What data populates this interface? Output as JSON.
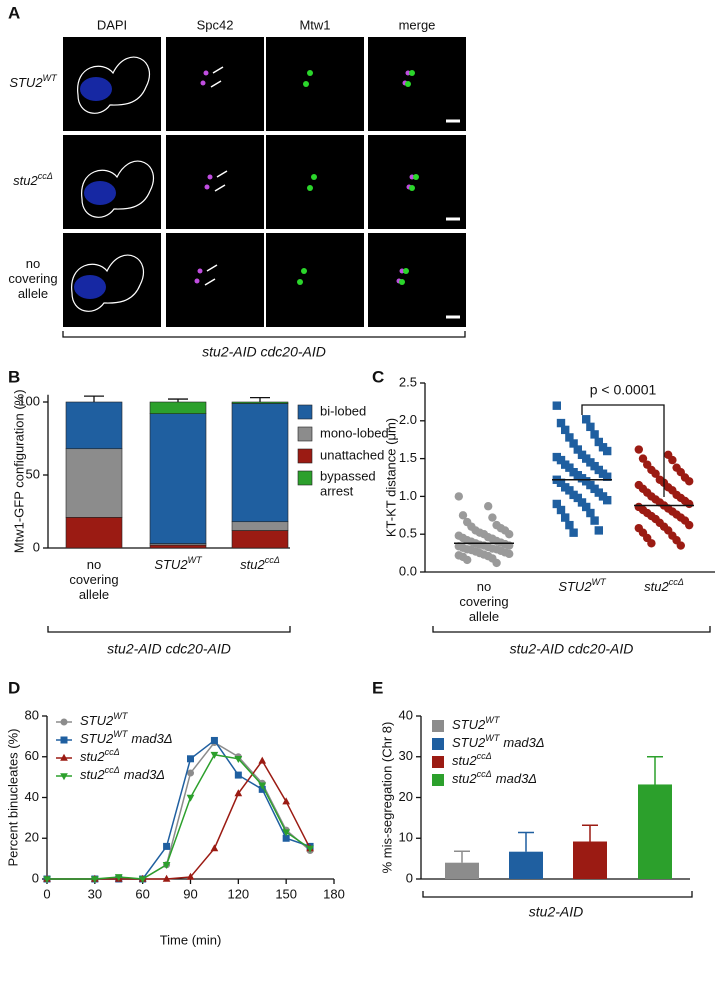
{
  "panel_labels": [
    "A",
    "B",
    "C",
    "D",
    "E"
  ],
  "panel_a": {
    "columns": [
      "DAPI",
      "Spc42",
      "Mtw1",
      "merge"
    ],
    "rows": [
      {
        "base": "STU2",
        "sup": "WT"
      },
      {
        "base": "stu2",
        "sup": "ccΔ"
      },
      "no covering allele"
    ],
    "caption": "stu2-AID cdc20-AID"
  },
  "chart_data": [
    {
      "type": "stacked-bar",
      "y_label": "Mtw1-GFP configuration (%)",
      "caption": "stu2-AID cdc20-AID",
      "categories": [
        "no covering allele",
        {
          "base": "STU2",
          "sup": "WT"
        },
        {
          "base": "stu2",
          "sup": "ccΔ"
        }
      ],
      "series": [
        {
          "name": "unattached",
          "color": "#9b1b13",
          "values": [
            21,
            2,
            12
          ],
          "errors": [
            4,
            0.5,
            2
          ]
        },
        {
          "name": "mono-lobed",
          "color": "#8c8c8c",
          "values": [
            47,
            1,
            6
          ],
          "errors": [
            8,
            null,
            3
          ]
        },
        {
          "name": "bi-lobed",
          "color": "#1f5fa0",
          "values": [
            32,
            89,
            81
          ],
          "errors": [
            4,
            1,
            4
          ]
        },
        {
          "name": "bypassed arrest",
          "color": "#2ca02c",
          "values": [
            0,
            8,
            1
          ],
          "errors": [
            null,
            2,
            null
          ]
        }
      ],
      "ylim": [
        0,
        105
      ],
      "yticks": [
        0,
        50,
        100
      ],
      "legend": "right"
    },
    {
      "type": "strip",
      "y_label": "KT-KT distance (μm)",
      "caption": "stu2-AID cdc20-AID",
      "annotation": "p < 0.0001",
      "categories": [
        "no covering allele",
        {
          "base": "STU2",
          "sup": "WT"
        },
        {
          "base": "stu2",
          "sup": "ccΔ"
        }
      ],
      "series": [
        {
          "color": "#9a9a9a",
          "marker": "circle",
          "mean": 0.38,
          "values": [
            1.0,
            0.87,
            0.75,
            0.72,
            0.66,
            0.62,
            0.6,
            0.58,
            0.55,
            0.55,
            0.52,
            0.5,
            0.5,
            0.48,
            0.46,
            0.45,
            0.44,
            0.42,
            0.41,
            0.4,
            0.39,
            0.38,
            0.37,
            0.36,
            0.35,
            0.35,
            0.34,
            0.33,
            0.32,
            0.31,
            0.3,
            0.3,
            0.29,
            0.28,
            0.27,
            0.26,
            0.25,
            0.24,
            0.23,
            0.22,
            0.21,
            0.2,
            0.18,
            0.16,
            0.12
          ]
        },
        {
          "color": "#1f5fa0",
          "marker": "square",
          "mean": 1.22,
          "values": [
            2.2,
            2.02,
            1.97,
            1.92,
            1.88,
            1.82,
            1.78,
            1.72,
            1.7,
            1.65,
            1.62,
            1.6,
            1.55,
            1.52,
            1.5,
            1.48,
            1.45,
            1.42,
            1.4,
            1.38,
            1.35,
            1.32,
            1.3,
            1.28,
            1.26,
            1.24,
            1.22,
            1.2,
            1.18,
            1.15,
            1.12,
            1.1,
            1.08,
            1.05,
            1.02,
            1.0,
            0.98,
            0.95,
            0.92,
            0.9,
            0.86,
            0.82,
            0.78,
            0.72,
            0.68,
            0.62,
            0.55,
            0.52
          ]
        },
        {
          "color": "#9b1b13",
          "marker": "circle",
          "mean": 0.88,
          "values": [
            1.62,
            1.55,
            1.5,
            1.48,
            1.42,
            1.38,
            1.35,
            1.32,
            1.3,
            1.25,
            1.22,
            1.2,
            1.18,
            1.15,
            1.12,
            1.1,
            1.08,
            1.05,
            1.02,
            1.0,
            0.98,
            0.96,
            0.94,
            0.92,
            0.9,
            0.88,
            0.86,
            0.84,
            0.82,
            0.8,
            0.78,
            0.76,
            0.74,
            0.72,
            0.7,
            0.68,
            0.65,
            0.62,
            0.6,
            0.58,
            0.55,
            0.52,
            0.48,
            0.45,
            0.42,
            0.38,
            0.35
          ]
        }
      ],
      "ylim": [
        0,
        2.5
      ],
      "yticks": [
        {
          "value": 0,
          "label": "0.0"
        },
        0.5,
        {
          "value": 1,
          "label": "1.0"
        },
        1.5,
        {
          "value": 2,
          "label": "2.0"
        },
        2.5
      ]
    },
    {
      "type": "line",
      "x_label": "Time (min)",
      "y_label": "Percent binucleates (%)",
      "x": [
        0,
        30,
        45,
        60,
        75,
        90,
        105,
        120,
        135,
        150,
        165
      ],
      "series": [
        {
          "name": {
            "base": "STU2",
            "sup": "WT"
          },
          "color": "#8c8c8c",
          "marker": "circle",
          "values": [
            0,
            0,
            0,
            0,
            7,
            52,
            67,
            60,
            47,
            24,
            14
          ]
        },
        {
          "name": {
            "base": "STU2",
            "sup": "WT",
            "after": "mad3Δ"
          },
          "color": "#1f5fa0",
          "marker": "square",
          "values": [
            0,
            0,
            0,
            0,
            16,
            59,
            68,
            51,
            44,
            20,
            16
          ]
        },
        {
          "name": {
            "base": "stu2",
            "sup": "ccΔ"
          },
          "color": "#9b1b13",
          "marker": "triangle",
          "values": [
            0,
            0,
            0,
            0,
            0,
            1,
            15,
            42,
            58,
            38,
            15
          ]
        },
        {
          "name": {
            "base": "stu2",
            "sup": "ccΔ",
            "after": "mad3Δ"
          },
          "color": "#2ca02c",
          "marker": "triangle-down",
          "values": [
            0,
            0,
            1,
            0,
            7,
            40,
            61,
            59,
            46,
            23,
            15
          ]
        }
      ],
      "xlim": [
        0,
        180
      ],
      "xticks": [
        0,
        30,
        60,
        90,
        120,
        150,
        180
      ],
      "ylim": [
        0,
        80
      ],
      "yticks": [
        0,
        20,
        40,
        60,
        80
      ],
      "legend": "upper left"
    },
    {
      "type": "bar",
      "y_label": "% mis-segregation (Chr 8)",
      "caption": "stu2-AID",
      "series": [
        {
          "name": {
            "base": "STU2",
            "sup": "WT"
          },
          "color": "#8c8c8c",
          "values": [
            4
          ],
          "errors": [
            2.8
          ]
        },
        {
          "name": {
            "base": "STU2",
            "sup": "WT",
            "after": "mad3Δ"
          },
          "color": "#1f5fa0",
          "values": [
            6.7
          ],
          "errors": [
            4.7
          ]
        },
        {
          "name": {
            "base": "stu2",
            "sup": "ccΔ"
          },
          "color": "#9b1b13",
          "values": [
            9.2
          ],
          "errors": [
            4
          ]
        },
        {
          "name": {
            "base": "stu2",
            "sup": "ccΔ",
            "after": "mad3Δ"
          },
          "color": "#2ca02c",
          "values": [
            23.2
          ],
          "errors": [
            6.8
          ]
        }
      ],
      "ylim": [
        0,
        40
      ],
      "yticks": [
        0,
        10,
        20,
        30,
        40
      ],
      "legend": "upper left"
    }
  ]
}
